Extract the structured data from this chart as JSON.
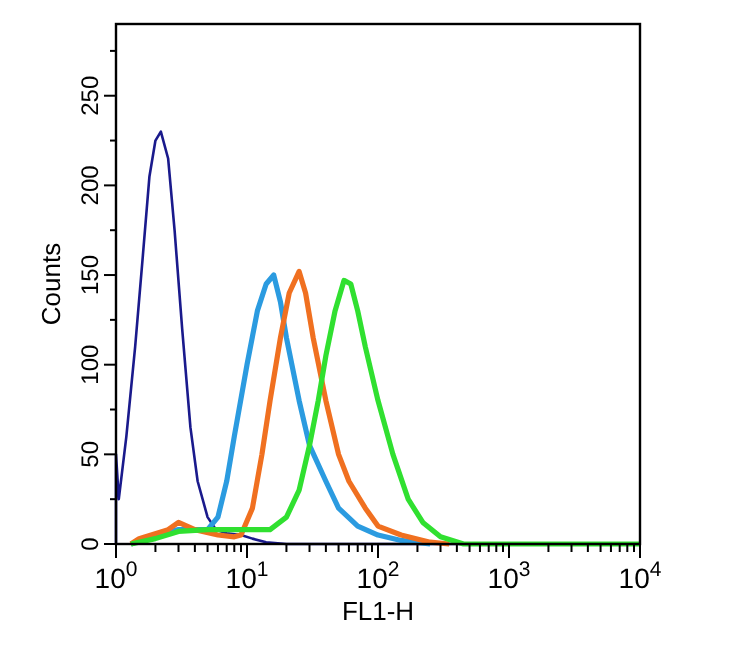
{
  "chart_data": {
    "type": "line",
    "xlabel": "FL1-H",
    "ylabel": "Counts",
    "log": "x",
    "xlim": [
      1,
      10000
    ],
    "ylim": [
      0,
      290
    ],
    "xticks": [
      {
        "value": 1,
        "label": "10$^{0}$"
      },
      {
        "value": 2,
        "label": null
      },
      {
        "value": 3,
        "label": null
      },
      {
        "value": 4,
        "label": null
      },
      {
        "value": 5,
        "label": null
      },
      {
        "value": 6,
        "label": null
      },
      {
        "value": 7,
        "label": null
      },
      {
        "value": 8,
        "label": null
      },
      {
        "value": 9,
        "label": null
      },
      {
        "value": 10,
        "label": "10$^{1}$"
      },
      {
        "value": 20,
        "label": null
      },
      {
        "value": 30,
        "label": null
      },
      {
        "value": 40,
        "label": null
      },
      {
        "value": 50,
        "label": null
      },
      {
        "value": 60,
        "label": null
      },
      {
        "value": 70,
        "label": null
      },
      {
        "value": 80,
        "label": null
      },
      {
        "value": 90,
        "label": null
      },
      {
        "value": 100,
        "label": "10$^{2}$"
      },
      {
        "value": 200,
        "label": null
      },
      {
        "value": 300,
        "label": null
      },
      {
        "value": 400,
        "label": null
      },
      {
        "value": 500,
        "label": null
      },
      {
        "value": 600,
        "label": null
      },
      {
        "value": 700,
        "label": null
      },
      {
        "value": 800,
        "label": null
      },
      {
        "value": 900,
        "label": null
      },
      {
        "value": 1000,
        "label": "10$^{3}$"
      },
      {
        "value": 2000,
        "label": null
      },
      {
        "value": 3000,
        "label": null
      },
      {
        "value": 4000,
        "label": null
      },
      {
        "value": 5000,
        "label": null
      },
      {
        "value": 6000,
        "label": null
      },
      {
        "value": 7000,
        "label": null
      },
      {
        "value": 8000,
        "label": null
      },
      {
        "value": 9000,
        "label": null
      },
      {
        "value": 10000,
        "label": "10$^{4}$"
      }
    ],
    "yticks": [
      0,
      {
        "value": 25,
        "label": null
      },
      50,
      {
        "value": 75,
        "label": null
      },
      100,
      {
        "value": 125,
        "label": null
      },
      150,
      {
        "value": 175,
        "label": null
      },
      200,
      {
        "value": 225,
        "label": null
      },
      250,
      {
        "value": 275,
        "label": null
      }
    ],
    "grid": false,
    "marker": "none",
    "line_style": "solid",
    "series": [
      {
        "color": "#1a1a8c",
        "x": [
          1,
          1,
          1.05,
          1.2,
          1.4,
          1.6,
          1.8,
          2,
          2.2,
          2.5,
          2.8,
          3.2,
          3.7,
          4.2,
          5,
          5.8,
          7,
          9,
          11,
          14,
          20,
          10000
        ],
        "values": [
          0,
          50,
          25,
          60,
          110,
          160,
          205,
          225,
          230,
          215,
          175,
          120,
          65,
          35,
          15,
          8,
          6,
          5,
          3,
          1,
          0,
          0
        ]
      },
      {
        "color": "#2b9be0",
        "x": [
          1.3,
          2,
          3,
          4,
          5,
          6,
          7,
          8,
          10,
          12,
          14,
          16,
          18,
          20,
          25,
          30,
          40,
          50,
          70,
          100,
          150,
          250
        ],
        "values": [
          0,
          5,
          8,
          8,
          8,
          15,
          35,
          60,
          100,
          130,
          145,
          150,
          135,
          115,
          80,
          55,
          35,
          20,
          10,
          5,
          2,
          0
        ]
      },
      {
        "color": "#f07020",
        "x": [
          1.3,
          1.5,
          2.5,
          3,
          4,
          6,
          8,
          9,
          11,
          13,
          15,
          18,
          21,
          25,
          28,
          32,
          40,
          50,
          60,
          80,
          100,
          150,
          250,
          350
        ],
        "values": [
          0,
          3,
          8,
          12,
          8,
          5,
          4,
          5,
          20,
          50,
          80,
          115,
          140,
          152,
          140,
          115,
          80,
          50,
          35,
          20,
          10,
          5,
          1,
          0
        ]
      },
      {
        "color": "#30e030",
        "x": [
          1.3,
          2,
          3,
          5,
          8,
          12,
          15,
          20,
          25,
          30,
          35,
          40,
          47,
          55,
          62,
          70,
          80,
          100,
          130,
          170,
          220,
          300,
          450,
          10000
        ],
        "values": [
          0,
          3,
          7,
          8,
          8,
          8,
          8,
          15,
          30,
          55,
          80,
          105,
          130,
          147,
          145,
          130,
          110,
          80,
          50,
          25,
          12,
          4,
          0,
          0
        ]
      }
    ]
  }
}
